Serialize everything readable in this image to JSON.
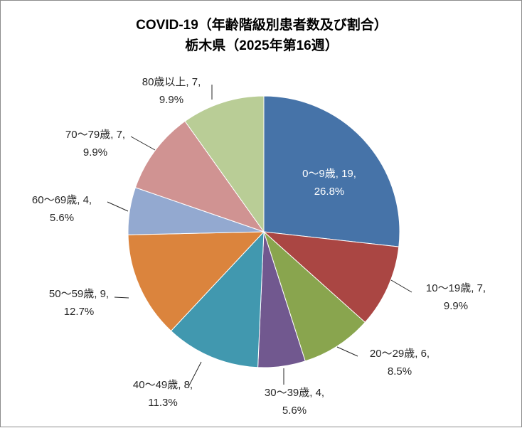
{
  "chart_data": {
    "type": "pie",
    "title_lines": [
      "COVID-19（年齢階級別患者数及び割合）",
      "栃木県（2025年第16週）"
    ],
    "slices": [
      {
        "category": "0～9歳",
        "value": 19,
        "percent": "26.8%",
        "color": "#4673A8"
      },
      {
        "category": "10～19歳",
        "value": 7,
        "percent": "9.9%",
        "color": "#AA4643"
      },
      {
        "category": "20～29歳",
        "value": 6,
        "percent": "8.5%",
        "color": "#89A54E"
      },
      {
        "category": "30～39歳",
        "value": 4,
        "percent": "5.6%",
        "color": "#71588F"
      },
      {
        "category": "40～49歳",
        "value": 8,
        "percent": "11.3%",
        "color": "#4198AF"
      },
      {
        "category": "50～59歳",
        "value": 9,
        "percent": "12.7%",
        "color": "#DB843D"
      },
      {
        "category": "60～69歳",
        "value": 4,
        "percent": "5.6%",
        "color": "#93A9D0"
      },
      {
        "category": "70～79歳",
        "value": 7,
        "percent": "9.9%",
        "color": "#D09392"
      },
      {
        "category": "80歳以上",
        "value": 7,
        "percent": "9.9%",
        "color": "#B9CD96"
      }
    ],
    "label_format": "{category}, {value},\n{percent}"
  }
}
